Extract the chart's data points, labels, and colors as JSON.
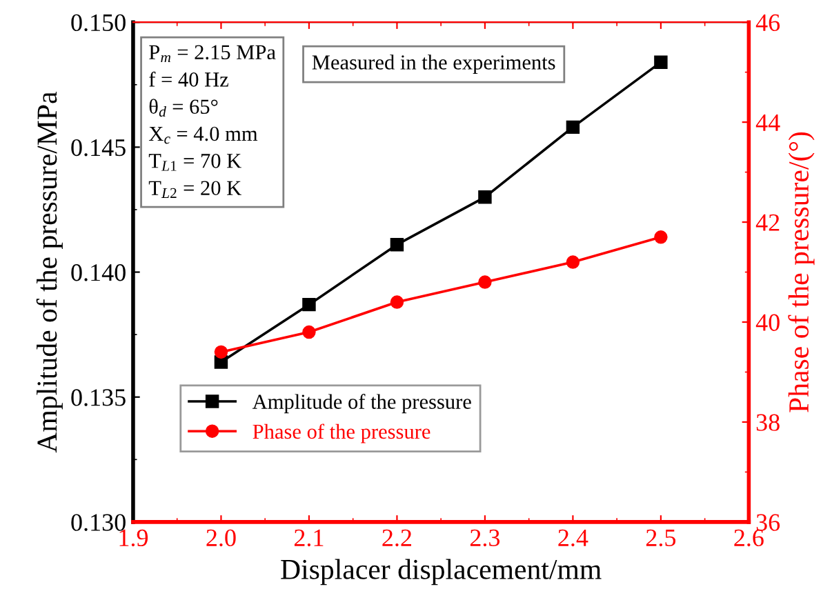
{
  "chart_data": {
    "type": "line",
    "xlabel": "Displacer displacement/mm",
    "ylabel": "Amplitude of the pressure/MPa",
    "y2label": "Phase of the pressure/(°)",
    "x": [
      2.0,
      2.1,
      2.2,
      2.3,
      2.4,
      2.5
    ],
    "series": [
      {
        "name": "Amplitude of the pressure",
        "color": "#000000",
        "marker": "square",
        "values": [
          0.1364,
          0.1387,
          0.1411,
          0.143,
          0.1458,
          0.1484
        ]
      },
      {
        "name": "Phase of the pressure",
        "color": "#ff0000",
        "marker": "circle",
        "axis": "y2",
        "values": [
          39.4,
          39.8,
          40.4,
          40.8,
          41.2,
          41.7
        ]
      }
    ],
    "xlim": [
      1.9,
      2.6
    ],
    "xticks": [
      {
        "value": 1.9,
        "label": "1.9"
      },
      {
        "value": 2.0,
        "label": "2.0"
      },
      {
        "value": 2.1,
        "label": "2.1"
      },
      {
        "value": 2.2,
        "label": "2.2"
      },
      {
        "value": 2.3,
        "label": "2.3"
      },
      {
        "value": 2.4,
        "label": "2.4"
      },
      {
        "value": 2.5,
        "label": "2.5"
      },
      {
        "value": 2.6,
        "label": "2.6"
      }
    ],
    "ylim": [
      0.13,
      0.15
    ],
    "yticks": [
      {
        "value": 0.13,
        "label": "0.130"
      },
      {
        "value": 0.135,
        "label": "0.135"
      },
      {
        "value": 0.14,
        "label": "0.140"
      },
      {
        "value": 0.145,
        "label": "0.145"
      },
      {
        "value": 0.15,
        "label": "0.150"
      }
    ],
    "y2lim": [
      36,
      46
    ],
    "y2ticks": [
      36,
      38,
      40,
      42,
      44,
      46
    ],
    "annotations": [
      "P$_{m}$ = 2.15 MPa\nf = 40 Hz\nθ$_{d}$ = 65°\nX$_{c}$ = 4.0 mm\nT$_{L1}$ = 70 K\nT$_{L2}$ = 20 K",
      "Measured in the experiments"
    ],
    "legend": "bottom left",
    "grid": false,
    "line_style": "solid"
  }
}
